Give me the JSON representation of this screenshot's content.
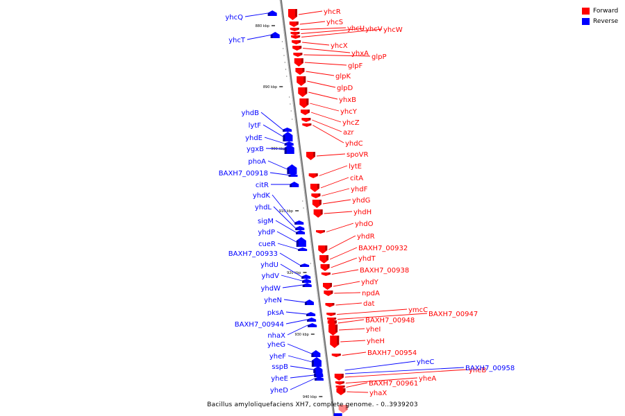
{
  "legend": {
    "forward_label": "Forward",
    "reverse_label": "Reverse",
    "forward_color": "#ff0000",
    "reverse_color": "#0000ff"
  },
  "caption": "Bacillus amyloliquefaciens XH7, complete genome. - 0..3939203",
  "scale_labels": [
    "880 kbp",
    "890 kbp",
    "900 kbp",
    "910 kbp",
    "920 kbp",
    "930 kbp",
    "940 kbp"
  ],
  "forward_genes": [
    "yhcR",
    "yhcS",
    "yhcU",
    "yhcV",
    "yhcW",
    "yhcX",
    "yhxA",
    "glpP",
    "glpF",
    "glpK",
    "glpD",
    "yhxB",
    "yhcY",
    "yhcZ",
    "azr",
    "yhdC",
    "spoVR",
    "lytE",
    "citA",
    "yhdF",
    "yhdG",
    "yhdH",
    "yhdO",
    "yhdR",
    "BAXH7_00932",
    "yhdT",
    "BAXH7_00938",
    "yhdY",
    "npdA",
    "dat",
    "ymcC",
    "BAXH7_00947",
    "BAXH7_00948",
    "yheI",
    "yheH",
    "BAXH7_00954",
    "yheB",
    "yheA",
    "BAXH7_00961",
    "yhaX"
  ],
  "reverse_genes": [
    "yhcQ",
    "yhcT",
    "yhdB",
    "lytF",
    "yhdE",
    "ygxB",
    "phoA",
    "BAXH7_00918",
    "citR",
    "yhdK",
    "yhdL",
    "sigM",
    "yhdP",
    "cueR",
    "BAXH7_00933",
    "yhdU",
    "yhdV",
    "yhdW",
    "yheN",
    "pksA",
    "BAXH7_00944",
    "nhaX",
    "yheG",
    "yheF",
    "sspB",
    "yheE",
    "yheD",
    "yheC",
    "BAXH7_00958"
  ]
}
